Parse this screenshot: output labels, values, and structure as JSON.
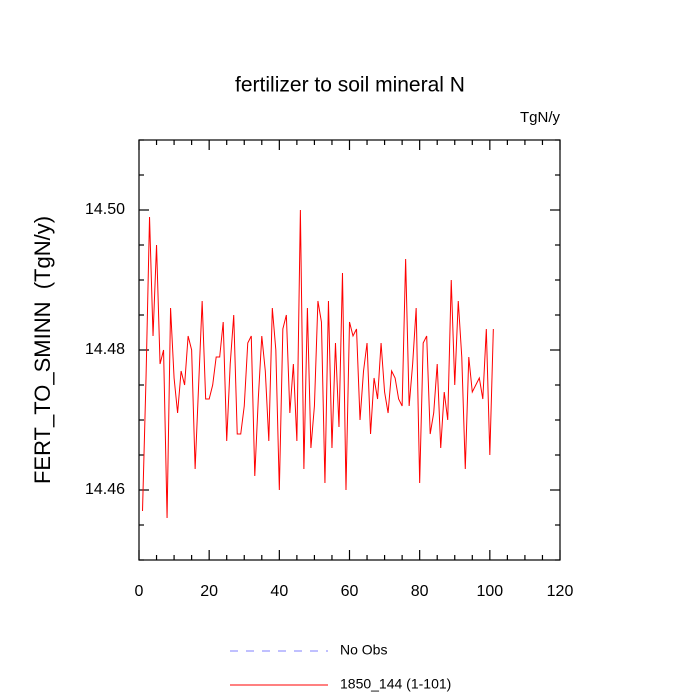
{
  "chart_data": {
    "type": "line",
    "title": "fertilizer to soil mineral N",
    "units": "TgN/y",
    "ylabel": "FERT_TO_SMINN  (TgN/y)",
    "xlim": [
      0,
      120
    ],
    "xticks": [
      0,
      20,
      40,
      60,
      80,
      100,
      120
    ],
    "ylim": [
      14.45,
      14.51
    ],
    "yticks": [
      {
        "value": 14.5,
        "label": "14.50"
      },
      14.48,
      14.46
    ],
    "x": [
      1,
      2,
      3,
      4,
      5,
      6,
      7,
      8,
      9,
      10,
      11,
      12,
      13,
      14,
      15,
      16,
      17,
      18,
      19,
      20,
      21,
      22,
      23,
      24,
      25,
      26,
      27,
      28,
      29,
      30,
      31,
      32,
      33,
      34,
      35,
      36,
      37,
      38,
      39,
      40,
      41,
      42,
      43,
      44,
      45,
      46,
      47,
      48,
      49,
      50,
      51,
      52,
      53,
      54,
      55,
      56,
      57,
      58,
      59,
      60,
      61,
      62,
      63,
      64,
      65,
      66,
      67,
      68,
      69,
      70,
      71,
      72,
      73,
      74,
      75,
      76,
      77,
      78,
      79,
      80,
      81,
      82,
      83,
      84,
      85,
      86,
      87,
      88,
      89,
      90,
      91,
      92,
      93,
      94,
      95,
      96,
      97,
      98,
      99,
      100,
      101
    ],
    "series": [
      {
        "name": "1850_144 (1-101)",
        "color": "#ff0000",
        "values": [
          14.457,
          14.476,
          14.499,
          14.482,
          14.495,
          14.478,
          14.48,
          14.456,
          14.486,
          14.476,
          14.471,
          14.477,
          14.475,
          14.482,
          14.48,
          14.463,
          14.475,
          14.487,
          14.473,
          14.473,
          14.475,
          14.479,
          14.479,
          14.484,
          14.467,
          14.478,
          14.485,
          14.468,
          14.468,
          14.472,
          14.481,
          14.482,
          14.462,
          14.473,
          14.482,
          14.477,
          14.467,
          14.486,
          14.48,
          14.46,
          14.483,
          14.485,
          14.471,
          14.478,
          14.467,
          14.5,
          14.463,
          14.486,
          14.466,
          14.472,
          14.487,
          14.484,
          14.461,
          14.487,
          14.466,
          14.481,
          14.469,
          14.491,
          14.46,
          14.484,
          14.482,
          14.483,
          14.47,
          14.477,
          14.481,
          14.468,
          14.476,
          14.473,
          14.481,
          14.474,
          14.471,
          14.477,
          14.476,
          14.473,
          14.472,
          14.493,
          14.472,
          14.478,
          14.486,
          14.461,
          14.481,
          14.482,
          14.468,
          14.471,
          14.478,
          14.466,
          14.474,
          14.47,
          14.49,
          14.475,
          14.487,
          14.479,
          14.463,
          14.479,
          14.474,
          14.475,
          14.476,
          14.473,
          14.483,
          14.465,
          14.483
        ]
      }
    ],
    "reference": {
      "name": "No Obs",
      "color": "#8080ff",
      "style": "dashed"
    }
  }
}
